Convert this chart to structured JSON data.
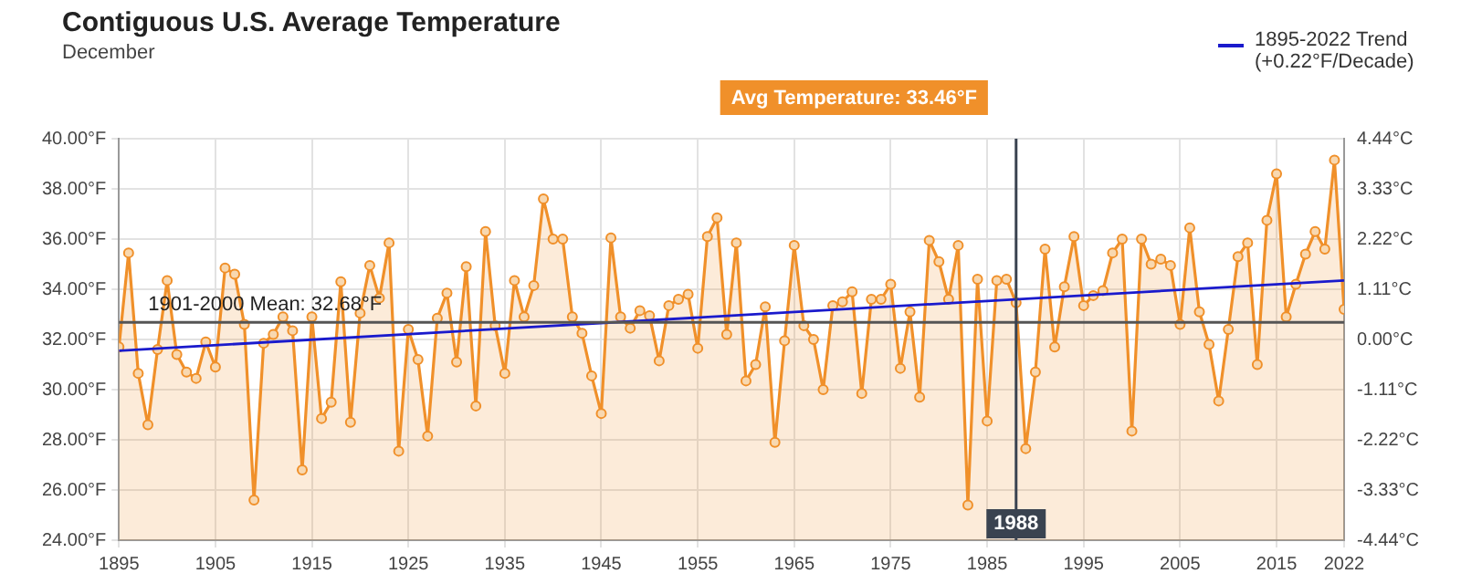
{
  "chart_data": {
    "type": "line",
    "title": "Contiguous U.S. Average Temperature",
    "subtitle": "December",
    "x": [
      1895,
      1896,
      1897,
      1898,
      1899,
      1900,
      1901,
      1902,
      1903,
      1904,
      1905,
      1906,
      1907,
      1908,
      1909,
      1910,
      1911,
      1912,
      1913,
      1914,
      1915,
      1916,
      1917,
      1918,
      1919,
      1920,
      1921,
      1922,
      1923,
      1924,
      1925,
      1926,
      1927,
      1928,
      1929,
      1930,
      1931,
      1932,
      1933,
      1934,
      1935,
      1936,
      1937,
      1938,
      1939,
      1940,
      1941,
      1942,
      1943,
      1944,
      1945,
      1946,
      1947,
      1948,
      1949,
      1950,
      1951,
      1952,
      1953,
      1954,
      1955,
      1956,
      1957,
      1958,
      1959,
      1960,
      1961,
      1962,
      1963,
      1964,
      1965,
      1966,
      1967,
      1968,
      1969,
      1970,
      1971,
      1972,
      1973,
      1974,
      1975,
      1976,
      1977,
      1978,
      1979,
      1980,
      1981,
      1982,
      1983,
      1984,
      1985,
      1986,
      1987,
      1988,
      1989,
      1990,
      1991,
      1992,
      1993,
      1994,
      1995,
      1996,
      1997,
      1998,
      1999,
      2000,
      2001,
      2002,
      2003,
      2004,
      2005,
      2006,
      2007,
      2008,
      2009,
      2010,
      2011,
      2012,
      2013,
      2014,
      2015,
      2016,
      2017,
      2018,
      2019,
      2020,
      2021,
      2022
    ],
    "series": [
      {
        "type": "area",
        "color": "#f0902a",
        "marker": "circle",
        "values": [
          31.7,
          35.45,
          30.65,
          28.6,
          31.6,
          34.35,
          31.4,
          30.7,
          30.45,
          31.9,
          30.9,
          34.85,
          34.6,
          32.6,
          25.6,
          31.85,
          32.2,
          32.9,
          32.35,
          26.8,
          32.9,
          28.85,
          29.5,
          34.3,
          28.7,
          33.05,
          34.95,
          33.65,
          35.85,
          27.55,
          32.4,
          31.2,
          28.15,
          32.85,
          33.85,
          31.1,
          34.9,
          29.35,
          36.3,
          32.55,
          30.65,
          34.35,
          32.9,
          34.15,
          37.6,
          36.0,
          36.0,
          32.9,
          32.25,
          30.55,
          29.05,
          36.05,
          32.9,
          32.45,
          33.15,
          32.95,
          31.15,
          33.35,
          33.6,
          33.8,
          31.65,
          36.1,
          36.85,
          32.2,
          35.85,
          30.35,
          31.0,
          33.3,
          27.9,
          31.95,
          35.75,
          32.55,
          32.0,
          30.0,
          33.35,
          33.5,
          33.9,
          29.85,
          33.6,
          33.6,
          34.2,
          30.85,
          33.1,
          29.7,
          35.95,
          35.1,
          33.6,
          35.75,
          25.4,
          34.4,
          28.75,
          34.35,
          34.4,
          33.46,
          27.65,
          30.7,
          35.6,
          31.7,
          34.1,
          36.1,
          33.35,
          33.75,
          33.95,
          35.45,
          36.0,
          28.35,
          36.0,
          35.0,
          35.2,
          34.95,
          32.6,
          36.45,
          33.1,
          31.8,
          29.55,
          32.4,
          35.3,
          35.85,
          31.0,
          36.75,
          38.6,
          32.9,
          34.2,
          35.4,
          36.3,
          35.6,
          39.15,
          33.2
        ]
      },
      {
        "type": "line",
        "name": "1895-2022 Trend (+0.22°F/Decade)",
        "color": "#1a1acc",
        "marker": "none",
        "x": [
          1895,
          2022
        ],
        "values": [
          31.55,
          34.35
        ]
      }
    ],
    "xlim": [
      1895,
      2022
    ],
    "xticks": [
      1895,
      1905,
      1915,
      1925,
      1935,
      1945,
      1955,
      1965,
      1975,
      1985,
      1995,
      2005,
      2015,
      2022
    ],
    "ylim": [
      24,
      40
    ],
    "yticks": [
      {
        "value": 24,
        "label": "24.00°F"
      },
      {
        "value": 26,
        "label": "26.00°F"
      },
      {
        "value": 28,
        "label": "28.00°F"
      },
      {
        "value": 30,
        "label": "30.00°F"
      },
      {
        "value": 32,
        "label": "32.00°F"
      },
      {
        "value": 34,
        "label": "34.00°F"
      },
      {
        "value": 36,
        "label": "36.00°F"
      },
      {
        "value": 38,
        "label": "38.00°F"
      },
      {
        "value": 40,
        "label": "40.00°F"
      }
    ],
    "y2lim": [
      -4.44,
      4.44
    ],
    "y2ticks": [
      {
        "value": -4.44,
        "label": "-4.44°C"
      },
      {
        "value": -3.33,
        "label": "-3.33°C"
      },
      {
        "value": -2.22,
        "label": "-2.22°C"
      },
      {
        "value": -1.11,
        "label": "-1.11°C"
      },
      {
        "value": 0,
        "label": "0.00°C"
      },
      {
        "value": 1.11,
        "label": "1.11°C"
      },
      {
        "value": 2.22,
        "label": "2.22°C"
      },
      {
        "value": 3.33,
        "label": "3.33°C"
      },
      {
        "value": 4.44,
        "label": "4.44°C"
      }
    ],
    "ref_lines": [
      {
        "axis": "y",
        "value": 32.68,
        "label": "1901-2000 Mean: 32.68°F",
        "color": "#555555"
      },
      {
        "axis": "x",
        "value": 1988,
        "label": "1988",
        "color": "#3a4350"
      }
    ],
    "annotations": [
      "Avg Temperature: 33.46°F"
    ],
    "grid": true,
    "legend": "top right"
  }
}
